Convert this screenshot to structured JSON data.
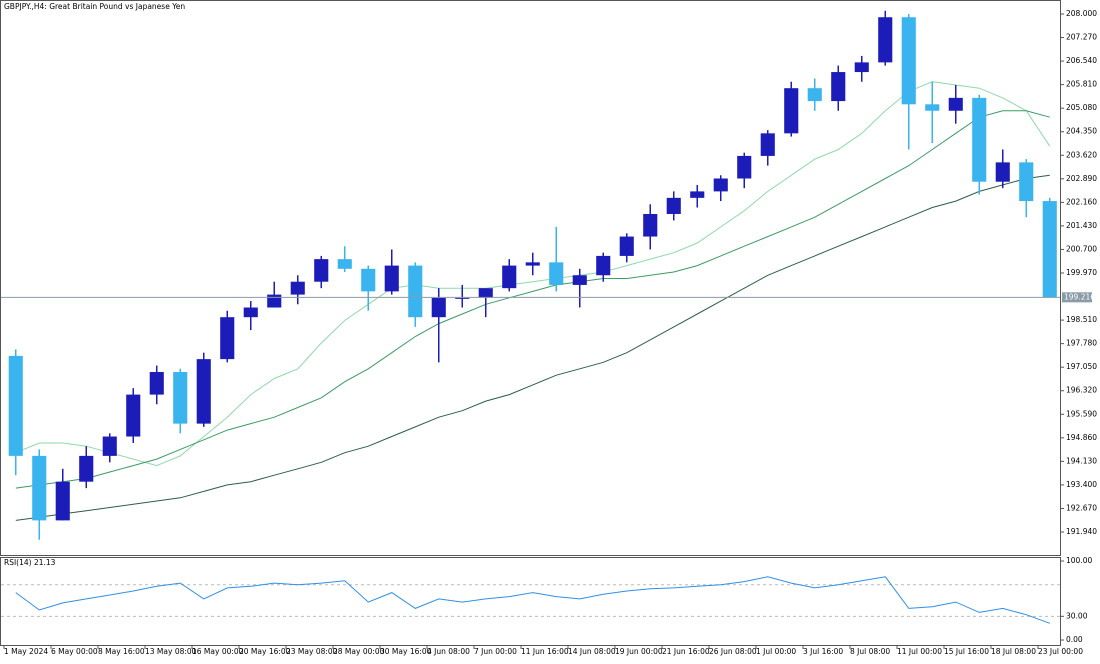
{
  "chart_data": [
    {
      "type": "candlestick",
      "title": "GBPJPY.,H4:  Great Britain Pound vs Japanese Yen",
      "up_color": "#1c1cb8",
      "down_color": "#3ab4ee",
      "ohlc": {
        "open": [
          197.4,
          194.3,
          192.3,
          193.5,
          194.3,
          194.9,
          196.2,
          196.9,
          195.3,
          197.3,
          198.6,
          198.9,
          199.3,
          199.7,
          200.4,
          200.1,
          199.4,
          200.2,
          198.6,
          199.2,
          199.2,
          199.5,
          200.2,
          200.3,
          199.6,
          199.9,
          200.5,
          201.1,
          201.8,
          202.3,
          202.5,
          202.9,
          203.6,
          204.3,
          205.7,
          205.3,
          206.2,
          206.5,
          207.9,
          205.2,
          205.0,
          205.4,
          202.8,
          203.4,
          202.2
        ],
        "high": [
          197.6,
          194.5,
          193.9,
          194.6,
          195.0,
          196.4,
          197.1,
          197.0,
          197.5,
          198.8,
          199.1,
          199.7,
          199.9,
          200.5,
          200.8,
          200.2,
          200.7,
          200.3,
          199.5,
          199.6,
          199.4,
          200.4,
          200.6,
          201.4,
          200.1,
          200.6,
          201.2,
          202.1,
          202.5,
          202.7,
          203.0,
          203.7,
          204.4,
          205.9,
          206.0,
          206.4,
          206.7,
          208.1,
          208.0,
          205.9,
          205.8,
          205.5,
          203.8,
          203.5,
          202.3
        ],
        "low": [
          193.7,
          191.7,
          192.3,
          193.3,
          194.1,
          194.7,
          195.9,
          195.0,
          195.2,
          197.2,
          198.2,
          198.9,
          199.0,
          199.5,
          200.0,
          198.8,
          199.3,
          198.3,
          197.2,
          198.9,
          198.6,
          199.4,
          199.9,
          199.4,
          198.9,
          199.7,
          200.3,
          200.7,
          201.6,
          202.0,
          202.2,
          202.6,
          203.3,
          204.2,
          205.0,
          205.0,
          205.9,
          206.4,
          203.8,
          204.0,
          204.6,
          202.4,
          202.6,
          201.7,
          199.2
        ],
        "close": [
          194.3,
          192.3,
          193.5,
          194.3,
          194.9,
          196.2,
          196.9,
          195.3,
          197.3,
          198.6,
          198.9,
          199.3,
          199.7,
          200.4,
          200.1,
          199.4,
          200.2,
          198.6,
          199.2,
          199.2,
          199.5,
          200.2,
          200.3,
          199.6,
          199.9,
          200.5,
          201.1,
          201.8,
          202.3,
          202.5,
          202.9,
          203.6,
          204.3,
          205.7,
          205.3,
          206.2,
          206.5,
          207.9,
          205.2,
          205.0,
          205.4,
          202.8,
          203.4,
          202.2,
          199.216
        ]
      },
      "moving_averages": [
        {
          "color": "#8fd9a8",
          "values": [
            194.4,
            194.7,
            194.7,
            194.6,
            194.4,
            194.2,
            194.0,
            194.3,
            194.9,
            195.5,
            196.2,
            196.7,
            197.0,
            197.8,
            198.5,
            199.0,
            199.5,
            199.6,
            199.5,
            199.5,
            199.5,
            199.6,
            199.7,
            199.8,
            199.9,
            200.0,
            200.2,
            200.4,
            200.6,
            200.9,
            201.4,
            201.9,
            202.5,
            203.0,
            203.5,
            203.8,
            204.3,
            205.0,
            205.6,
            205.9,
            205.8,
            205.7,
            205.4,
            205.0,
            203.9
          ]
        },
        {
          "color": "#3c9a64",
          "values": [
            193.3,
            193.4,
            193.5,
            193.6,
            193.8,
            194.0,
            194.2,
            194.5,
            194.8,
            195.1,
            195.3,
            195.5,
            195.8,
            196.1,
            196.6,
            197.0,
            197.5,
            198.0,
            198.4,
            198.7,
            199.0,
            199.2,
            199.4,
            199.6,
            199.7,
            199.8,
            199.8,
            199.9,
            200.0,
            200.2,
            200.5,
            200.8,
            201.1,
            201.4,
            201.7,
            202.1,
            202.5,
            202.9,
            203.3,
            203.8,
            204.3,
            204.8,
            205.0,
            205.0,
            204.8
          ]
        },
        {
          "color": "#2d5e45",
          "values": [
            192.3,
            192.4,
            192.5,
            192.6,
            192.7,
            192.8,
            192.9,
            193.0,
            193.2,
            193.4,
            193.5,
            193.7,
            193.9,
            194.1,
            194.4,
            194.6,
            194.9,
            195.2,
            195.5,
            195.7,
            196.0,
            196.2,
            196.5,
            196.8,
            197.0,
            197.2,
            197.5,
            197.9,
            198.3,
            198.7,
            199.1,
            199.5,
            199.9,
            200.2,
            200.5,
            200.8,
            201.1,
            201.4,
            201.7,
            202.0,
            202.2,
            202.5,
            202.7,
            202.9,
            203.0
          ]
        }
      ],
      "last_price": 199.216,
      "ylim": [
        191.227,
        208.434
      ],
      "yticks": [
        {
          "value": 208,
          "label": "208.000"
        },
        {
          "value": 207.27,
          "label": "207.270"
        },
        {
          "value": 206.54,
          "label": "206.540"
        },
        {
          "value": 205.81,
          "label": "205.810"
        },
        {
          "value": 205.08,
          "label": "205.080"
        },
        {
          "value": 204.35,
          "label": "204.350"
        },
        {
          "value": 203.62,
          "label": "203.620"
        },
        {
          "value": 202.89,
          "label": "202.890"
        },
        {
          "value": 202.16,
          "label": "202.160"
        },
        {
          "value": 201.43,
          "label": "201.430"
        },
        {
          "value": 200.7,
          "label": "200.700"
        },
        {
          "value": 199.97,
          "label": "199.970"
        },
        {
          "value": 198.51,
          "label": "198.510"
        },
        {
          "value": 197.78,
          "label": "197.780"
        },
        {
          "value": 197.05,
          "label": "197.050"
        },
        {
          "value": 196.32,
          "label": "196.320"
        },
        {
          "value": 195.59,
          "label": "195.590"
        },
        {
          "value": 194.86,
          "label": "194.860"
        },
        {
          "value": 194.13,
          "label": "194.130"
        },
        {
          "value": 193.4,
          "label": "193.400"
        },
        {
          "value": 192.67,
          "label": "192.670"
        },
        {
          "value": 191.94,
          "label": "191.940"
        }
      ],
      "xlim": [
        0,
        45
      ],
      "xticks": [
        {
          "value": 0,
          "label": "1 May 2024"
        },
        {
          "value": 2,
          "label": "6 May 00:00"
        },
        {
          "value": 4,
          "label": "8 May 16:00"
        },
        {
          "value": 6,
          "label": "13 May 08:00"
        },
        {
          "value": 8,
          "label": "16 May 00:00"
        },
        {
          "value": 10,
          "label": "20 May 16:00"
        },
        {
          "value": 12,
          "label": "23 May 08:00"
        },
        {
          "value": 14,
          "label": "28 May 00:00"
        },
        {
          "value": 16,
          "label": "30 May 16:00"
        },
        {
          "value": 18,
          "label": "4 Jun 08:00"
        },
        {
          "value": 20,
          "label": "7 Jun 00:00"
        },
        {
          "value": 22,
          "label": "11 Jun 16:00"
        },
        {
          "value": 24,
          "label": "14 Jun 08:00"
        },
        {
          "value": 26,
          "label": "19 Jun 00:00"
        },
        {
          "value": 28,
          "label": "21 Jun 16:00"
        },
        {
          "value": 30,
          "label": "26 Jun 08:00"
        },
        {
          "value": 32,
          "label": "1 Jul 00:00"
        },
        {
          "value": 34,
          "label": "3 Jul 16:00"
        },
        {
          "value": 36,
          "label": "8 Jul 08:00"
        },
        {
          "value": 38,
          "label": "11 Jul 00:00"
        },
        {
          "value": 40,
          "label": "15 Jul 16:00"
        },
        {
          "value": 42,
          "label": "18 Jul 08:00"
        },
        {
          "value": 44,
          "label": "23 Jul 00:00"
        }
      ]
    },
    {
      "type": "line",
      "title": "RSI(14) 21.13",
      "color": "#2f8fe6",
      "values": [
        60,
        38,
        47,
        52,
        57,
        62,
        68,
        72,
        52,
        66,
        68,
        72,
        70,
        72,
        75,
        48,
        60,
        40,
        52,
        48,
        52,
        55,
        60,
        55,
        52,
        58,
        62,
        65,
        66,
        68,
        70,
        74,
        80,
        72,
        66,
        70,
        75,
        80,
        40,
        42,
        48,
        35,
        40,
        32,
        21.13
      ],
      "levels": [
        70,
        30
      ],
      "ylim": [
        -6.3,
        105.1
      ],
      "yticks": [
        {
          "value": 100,
          "label": "100.00"
        },
        {
          "value": 30,
          "label": "30.00"
        },
        {
          "value": 0,
          "label": "0.00"
        }
      ]
    }
  ]
}
